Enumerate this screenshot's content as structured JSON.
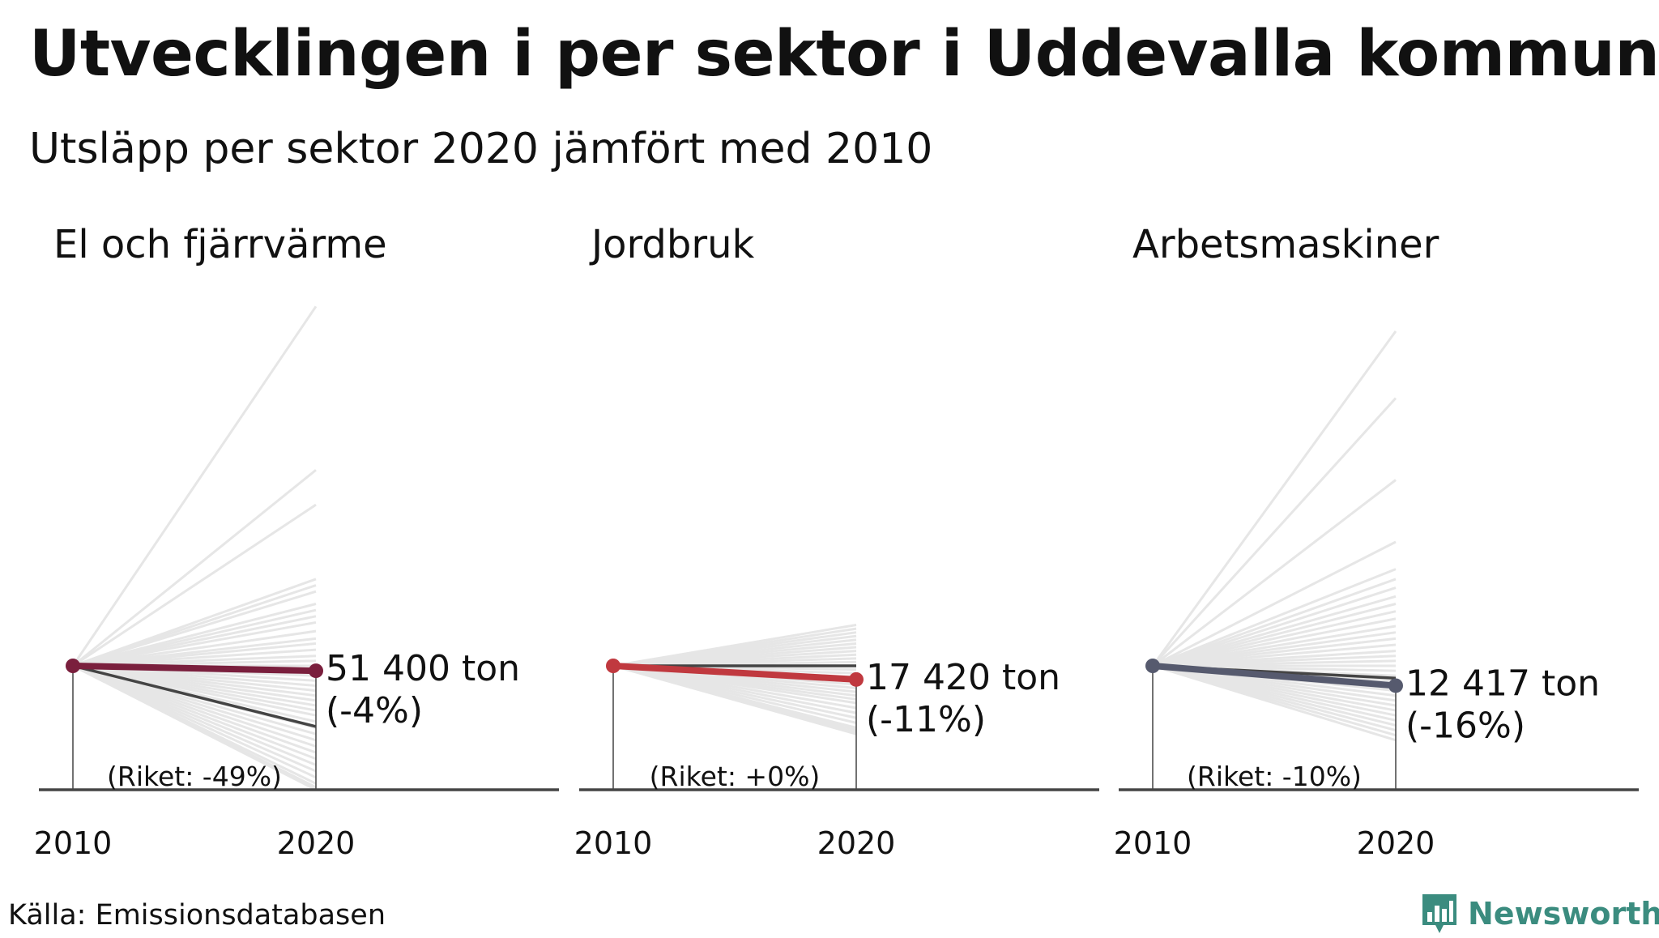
{
  "title": "Utvecklingen i per sektor i Uddevalla kommun",
  "subtitle": "Utsläpp per sektor 2020 jämfört med 2010",
  "source": "Källa: Emissionsdatabasen",
  "brand": "Newsworthy",
  "colors": {
    "brand": "#3b8c7f",
    "background_lines": "#e6e6e6",
    "national_line": "#444444",
    "axis": "#444444"
  },
  "chart_data": [
    {
      "type": "line",
      "title": "El och fjärrvärme",
      "x": [
        "2010",
        "2020"
      ],
      "value_label": "51 400 ton",
      "change_label": "(-4%)",
      "national_label": "(Riket: -49%)",
      "highlight_color": "#7a1f3d",
      "series": [
        {
          "values": [
            100,
            96
          ]
        },
        {
          "values": [
            100,
            51
          ]
        }
      ],
      "background_index_2020": [
        390,
        258,
        230,
        170,
        165,
        160,
        150,
        145,
        140,
        135,
        128,
        122,
        118,
        113,
        108,
        104,
        100,
        96,
        92,
        88,
        84,
        80,
        76,
        72,
        68,
        64,
        60,
        55,
        50,
        45,
        40,
        35,
        30,
        25,
        20,
        15,
        10,
        5,
        2,
        0
      ]
    },
    {
      "type": "line",
      "title": "Jordbruk",
      "x": [
        "2010",
        "2020"
      ],
      "value_label": "17 420 ton",
      "change_label": "(-11%)",
      "national_label": "(Riket: +0%)",
      "highlight_color": "#c0393f",
      "series": [
        {
          "values": [
            100,
            89
          ]
        },
        {
          "values": [
            100,
            100
          ]
        }
      ],
      "background_index_2020": [
        133,
        130,
        127,
        124,
        121,
        118,
        115,
        112,
        109,
        106,
        103,
        100,
        97,
        94,
        91,
        88,
        85,
        82,
        79,
        76,
        73,
        70,
        66,
        62,
        58,
        54,
        50,
        48,
        46,
        45
      ]
    },
    {
      "type": "line",
      "title": "Arbetsmaskiner",
      "x": [
        "2010",
        "2020"
      ],
      "value_label": "12 417 ton",
      "change_label": "(-16%)",
      "national_label": "(Riket: -10%)",
      "highlight_color": "#565a6e",
      "series": [
        {
          "values": [
            100,
            84
          ]
        },
        {
          "values": [
            100,
            90
          ]
        }
      ],
      "background_index_2020": [
        370,
        316,
        250,
        200,
        178,
        170,
        163,
        156,
        150,
        144,
        138,
        132,
        127,
        122,
        117,
        112,
        108,
        104,
        100,
        96,
        92,
        88,
        84,
        80,
        76,
        72,
        68,
        64,
        60,
        56,
        52,
        48,
        44,
        40
      ]
    }
  ]
}
